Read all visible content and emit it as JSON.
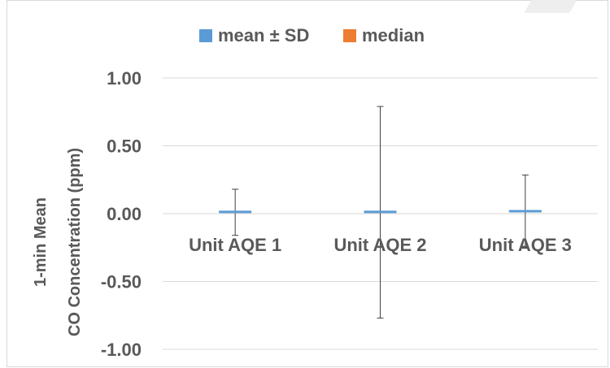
{
  "chart_data": {
    "type": "bar",
    "categories": [
      "Unit AQE 1",
      "Unit AQE 2",
      "Unit AQE 3"
    ],
    "series": [
      {
        "name": "mean ± SD",
        "values": [
          0.01,
          0.01,
          0.015
        ],
        "error": [
          0.17,
          0.78,
          0.27
        ]
      },
      {
        "name": "median",
        "values": [
          0.0,
          0.0,
          0.0
        ]
      }
    ],
    "ylabel_lines": [
      "1-min Mean",
      "CO Concentration (ppm)"
    ],
    "ylim": [
      -1.0,
      1.0
    ],
    "yticks": [
      "1.00",
      "0.50",
      "0.00",
      "-0.50",
      "-1.00"
    ],
    "ytick_values": [
      1.0,
      0.5,
      0.0,
      -0.5,
      -1.0
    ],
    "grid": true,
    "legend_position": "top",
    "colors": {
      "mean": "#5b9bd5",
      "median": "#ed7d31",
      "grid": "#d9d9d9",
      "text": "#595959",
      "error": "#404040"
    }
  }
}
